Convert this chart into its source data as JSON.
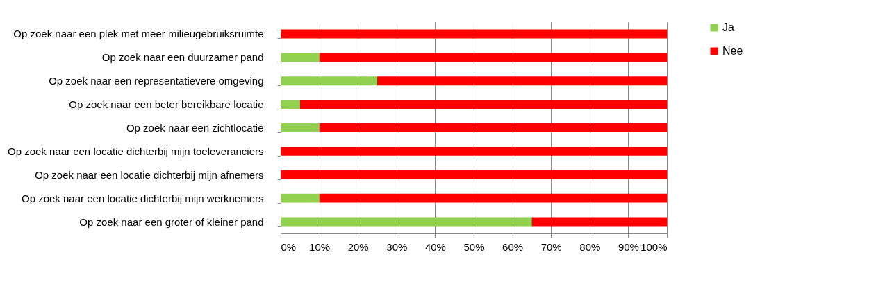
{
  "chart_data": {
    "type": "bar",
    "orientation": "horizontal",
    "stacked": true,
    "categories": [
      "Op zoek naar een plek met meer milieugebruiksruimte",
      "Op zoek naar een duurzamer pand",
      "Op zoek naar een representatievere omgeving",
      "Op zoek naar een beter bereikbare locatie",
      "Op zoek naar een zichtlocatie",
      "Op zoek naar een locatie dichterbij mijn toeleveranciers",
      "Op zoek naar een locatie dichterbij mijn afnemers",
      "Op zoek naar een locatie dichterbij mijn werknemers",
      "Op zoek naar een groter of kleiner pand"
    ],
    "series": [
      {
        "name": "Ja",
        "color": "#92d050",
        "values": [
          0,
          10,
          25,
          5,
          10,
          0,
          0,
          10,
          65
        ]
      },
      {
        "name": "Nee",
        "color": "#ff0000",
        "values": [
          100,
          90,
          75,
          95,
          90,
          100,
          100,
          90,
          35
        ]
      }
    ],
    "xlim": [
      0,
      100
    ],
    "xticks": [
      {
        "value": 0,
        "label": "0%"
      },
      {
        "value": 10,
        "label": "10%"
      },
      {
        "value": 20,
        "label": "20%"
      },
      {
        "value": 30,
        "label": "30%"
      },
      {
        "value": 40,
        "label": "40%"
      },
      {
        "value": 50,
        "label": "50%"
      },
      {
        "value": 60,
        "label": "60%"
      },
      {
        "value": 70,
        "label": "70%"
      },
      {
        "value": 80,
        "label": "80%"
      },
      {
        "value": 90,
        "label": "90%"
      },
      {
        "value": 100,
        "label": "100%"
      }
    ],
    "grid": "x",
    "legend": "right"
  }
}
